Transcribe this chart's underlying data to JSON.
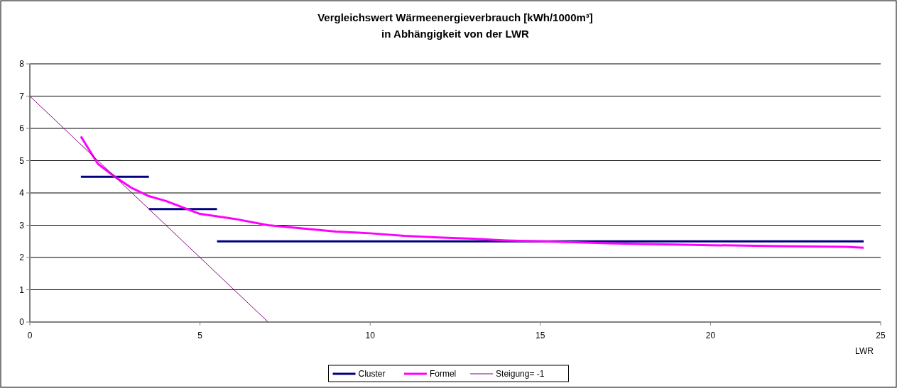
{
  "chart_data": {
    "type": "line",
    "title": "Vergleichswert Wärmeenergieverbrauch [kWh/1000m³]\nin Abhängigkeit von der LWR",
    "xlabel": "LWR",
    "xlim": [
      0,
      25
    ],
    "xticks": [
      0,
      5,
      10,
      15,
      20,
      25
    ],
    "ylim": [
      0,
      8
    ],
    "yticks": [
      0,
      1,
      2,
      3,
      4,
      5,
      6,
      7,
      8
    ],
    "grid": "y",
    "legend": "bottom",
    "marker": "none",
    "line_style": "solid",
    "series": [
      {
        "name": "Cluster",
        "color": "#000080",
        "x": [
          1.5,
          3.5
        ],
        "values": [
          4.5,
          4.5
        ]
      },
      {
        "color": "#000080",
        "x": [
          3.5,
          5.5
        ],
        "values": [
          3.5,
          3.5
        ]
      },
      {
        "color": "#000080",
        "x": [
          5.5,
          24.5
        ],
        "values": [
          2.5,
          2.5
        ]
      },
      {
        "name": "Formel",
        "color": "#ff00ff",
        "x": [
          1.5,
          2,
          2.5,
          3,
          3.5,
          4,
          5,
          6,
          7,
          8,
          9,
          10,
          11,
          12,
          13,
          14,
          15,
          16,
          17,
          18,
          19,
          20,
          21,
          22,
          23,
          24,
          24.5
        ],
        "values": [
          5.75,
          4.9,
          4.5,
          4.15,
          3.9,
          3.75,
          3.35,
          3.2,
          3.0,
          2.9,
          2.8,
          2.75,
          2.67,
          2.62,
          2.58,
          2.53,
          2.5,
          2.47,
          2.44,
          2.42,
          2.4,
          2.38,
          2.37,
          2.35,
          2.34,
          2.33,
          2.3
        ]
      },
      {
        "name": "Steigung= -1",
        "color": "#800080",
        "x": [
          0,
          7
        ],
        "values": [
          7,
          0
        ]
      }
    ]
  }
}
